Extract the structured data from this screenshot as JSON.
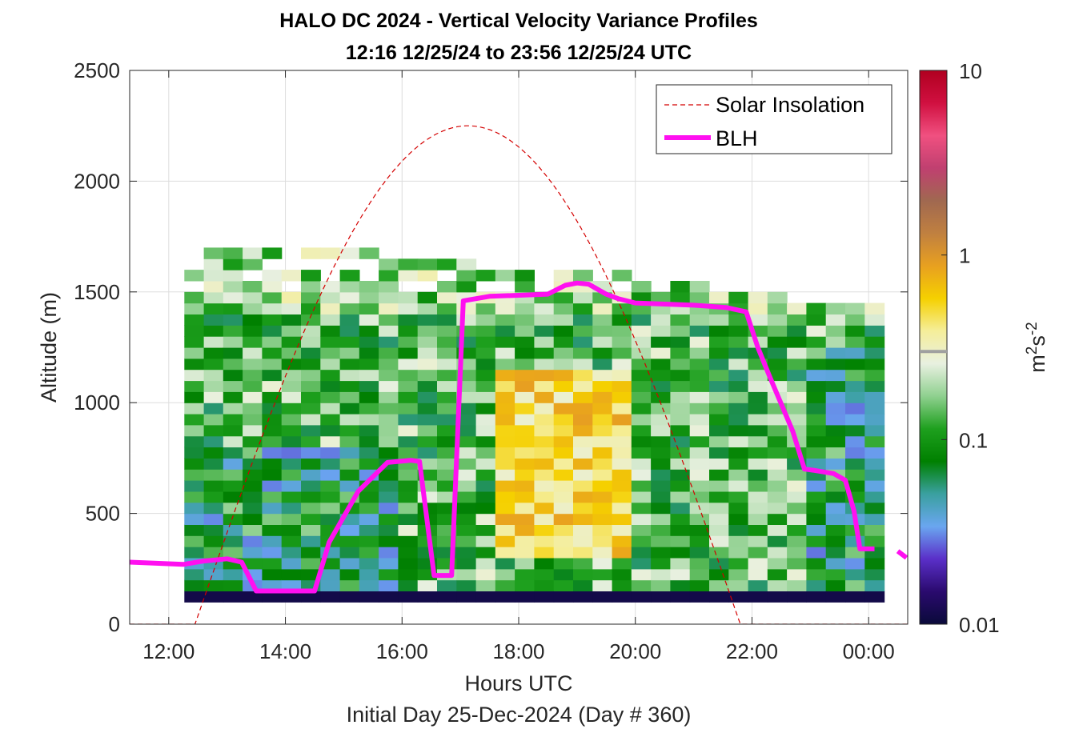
{
  "chart_data": {
    "type": "heatmap",
    "title": "HALO DC 2024 - Vertical Velocity Variance Profiles",
    "subtitle": "12:16 12/25/24 to 23:56 12/25/24  UTC",
    "xlabel": "Hours UTC",
    "xlabel2": "Initial Day 25-Dec-2024 (Day # 360)",
    "ylabel": "Altitude (m)",
    "xlim": [
      11.33,
      24.67
    ],
    "ylim": [
      0,
      2500
    ],
    "x_ticks": [
      12,
      14,
      16,
      18,
      20,
      22,
      24
    ],
    "x_tick_labels": [
      "12:00",
      "14:00",
      "16:00",
      "18:00",
      "20:00",
      "22:00",
      "00:00"
    ],
    "y_ticks": [
      0,
      500,
      1000,
      1500,
      2000,
      2500
    ],
    "y_tick_labels": [
      "0",
      "500",
      "1000",
      "1500",
      "2000",
      "2500"
    ],
    "grid": true,
    "legend": {
      "placement": "top-right",
      "entries": [
        "Solar Insolation",
        "BLH"
      ]
    },
    "colorbar": {
      "label": "m²s⁻²",
      "label_base": "m",
      "label_exp1": "2",
      "label_mid": "s",
      "label_exp2": "-2",
      "scale": "log",
      "range": [
        0.01,
        10
      ],
      "ticks": [
        0.01,
        0.1,
        1,
        10
      ],
      "tick_labels": [
        "0.01",
        "0.1",
        "1",
        "10"
      ],
      "colors": [
        "#0a0a3a",
        "#2a0a6e",
        "#5a2fc8",
        "#6aa6f0",
        "#3aa0a0",
        "#008000",
        "#1ea01e",
        "#8fd08f",
        "#e8f0e0",
        "#f5ee9a",
        "#f5d000",
        "#e8a020",
        "#c08040",
        "#a06850",
        "#c04070",
        "#f05080",
        "#d01040",
        "#b00020"
      ]
    },
    "bin_width_hours": 0.3333,
    "bin_height_m": 50,
    "heatmap_time_range": [
      12.267,
      23.933
    ],
    "heatmap_altitude_range": [
      100,
      1700
    ],
    "blh": {
      "name": "BLH",
      "x": [
        11.33,
        12.25,
        12.6,
        13.0,
        13.25,
        13.5,
        13.85,
        14.5,
        14.75,
        15.25,
        15.75,
        16.15,
        16.3,
        16.55,
        16.85,
        17.05,
        17.5,
        18.0,
        18.5,
        18.8,
        19.0,
        19.2,
        19.5,
        19.7,
        20.0,
        20.5,
        21.0,
        21.55,
        21.9,
        22.1,
        22.3,
        22.7,
        22.9,
        23.05,
        23.4,
        23.6,
        23.75,
        23.85,
        24.05,
        24.1
      ],
      "y": [
        280,
        270,
        285,
        295,
        280,
        150,
        150,
        150,
        370,
        600,
        730,
        740,
        735,
        220,
        220,
        1460,
        1480,
        1485,
        1490,
        1530,
        1540,
        1535,
        1490,
        1470,
        1450,
        1445,
        1440,
        1430,
        1410,
        1250,
        1120,
        870,
        700,
        695,
        680,
        650,
        510,
        340,
        340,
        340
      ]
    },
    "blh_tail": {
      "x": [
        24.5,
        24.65
      ],
      "y": [
        330,
        300
      ]
    },
    "solar_insolation": {
      "name": "Solar Insolation",
      "sunrise_hour": 12.45,
      "sunset_hour": 21.8,
      "peak_hour": 17.13,
      "peak_plot_value": 2250
    }
  }
}
